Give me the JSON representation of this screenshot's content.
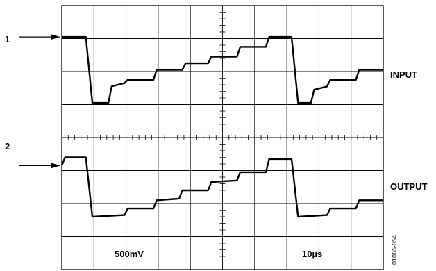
{
  "chart_data": {
    "type": "line",
    "title": "",
    "grid": true,
    "grid_divisions": {
      "x": 10,
      "y": 8
    },
    "x_scale_label": "10µs",
    "y_scale_label": "500mV",
    "series": [
      {
        "name": "INPUT",
        "marker": "1",
        "levels": [
          {
            "t": 0.0,
            "div": 3.05
          },
          {
            "t": 0.75,
            "div": 3.05
          },
          {
            "t": 0.95,
            "div": 1.05
          },
          {
            "t": 1.45,
            "div": 1.05
          },
          {
            "t": 1.55,
            "div": 1.55
          },
          {
            "t": 1.95,
            "div": 1.65
          },
          {
            "t": 2.05,
            "div": 1.75
          },
          {
            "t": 2.85,
            "div": 1.75
          },
          {
            "t": 2.95,
            "div": 2.05
          },
          {
            "t": 3.75,
            "div": 2.05
          },
          {
            "t": 3.85,
            "div": 2.25
          },
          {
            "t": 4.55,
            "div": 2.25
          },
          {
            "t": 4.65,
            "div": 2.45
          },
          {
            "t": 5.45,
            "div": 2.45
          },
          {
            "t": 5.55,
            "div": 2.75
          },
          {
            "t": 6.35,
            "div": 2.75
          },
          {
            "t": 6.45,
            "div": 3.05
          },
          {
            "t": 7.15,
            "div": 3.05
          },
          {
            "t": 7.35,
            "div": 1.05
          },
          {
            "t": 7.75,
            "div": 1.05
          },
          {
            "t": 7.85,
            "div": 1.45
          },
          {
            "t": 8.25,
            "div": 1.55
          },
          {
            "t": 8.35,
            "div": 1.75
          },
          {
            "t": 9.15,
            "div": 1.75
          },
          {
            "t": 9.25,
            "div": 2.05
          },
          {
            "t": 10.0,
            "div": 2.05
          }
        ]
      },
      {
        "name": "OUTPUT",
        "marker": "2",
        "levels": [
          {
            "t": 0.0,
            "div": -0.85
          },
          {
            "t": 0.1,
            "div": -0.6
          },
          {
            "t": 0.75,
            "div": -0.6
          },
          {
            "t": 0.95,
            "div": -2.4
          },
          {
            "t": 1.95,
            "div": -2.35
          },
          {
            "t": 2.05,
            "div": -2.15
          },
          {
            "t": 2.85,
            "div": -2.15
          },
          {
            "t": 2.95,
            "div": -1.9
          },
          {
            "t": 3.65,
            "div": -1.85
          },
          {
            "t": 3.75,
            "div": -1.6
          },
          {
            "t": 4.55,
            "div": -1.6
          },
          {
            "t": 4.65,
            "div": -1.35
          },
          {
            "t": 5.45,
            "div": -1.3
          },
          {
            "t": 5.55,
            "div": -1.05
          },
          {
            "t": 6.35,
            "div": -1.05
          },
          {
            "t": 6.45,
            "div": -0.65
          },
          {
            "t": 7.15,
            "div": -0.65
          },
          {
            "t": 7.35,
            "div": -2.4
          },
          {
            "t": 8.25,
            "div": -2.35
          },
          {
            "t": 8.35,
            "div": -2.15
          },
          {
            "t": 9.15,
            "div": -2.15
          },
          {
            "t": 9.25,
            "div": -1.9
          },
          {
            "t": 10.0,
            "div": -1.9
          }
        ]
      }
    ],
    "figure_id": "01065-054"
  }
}
